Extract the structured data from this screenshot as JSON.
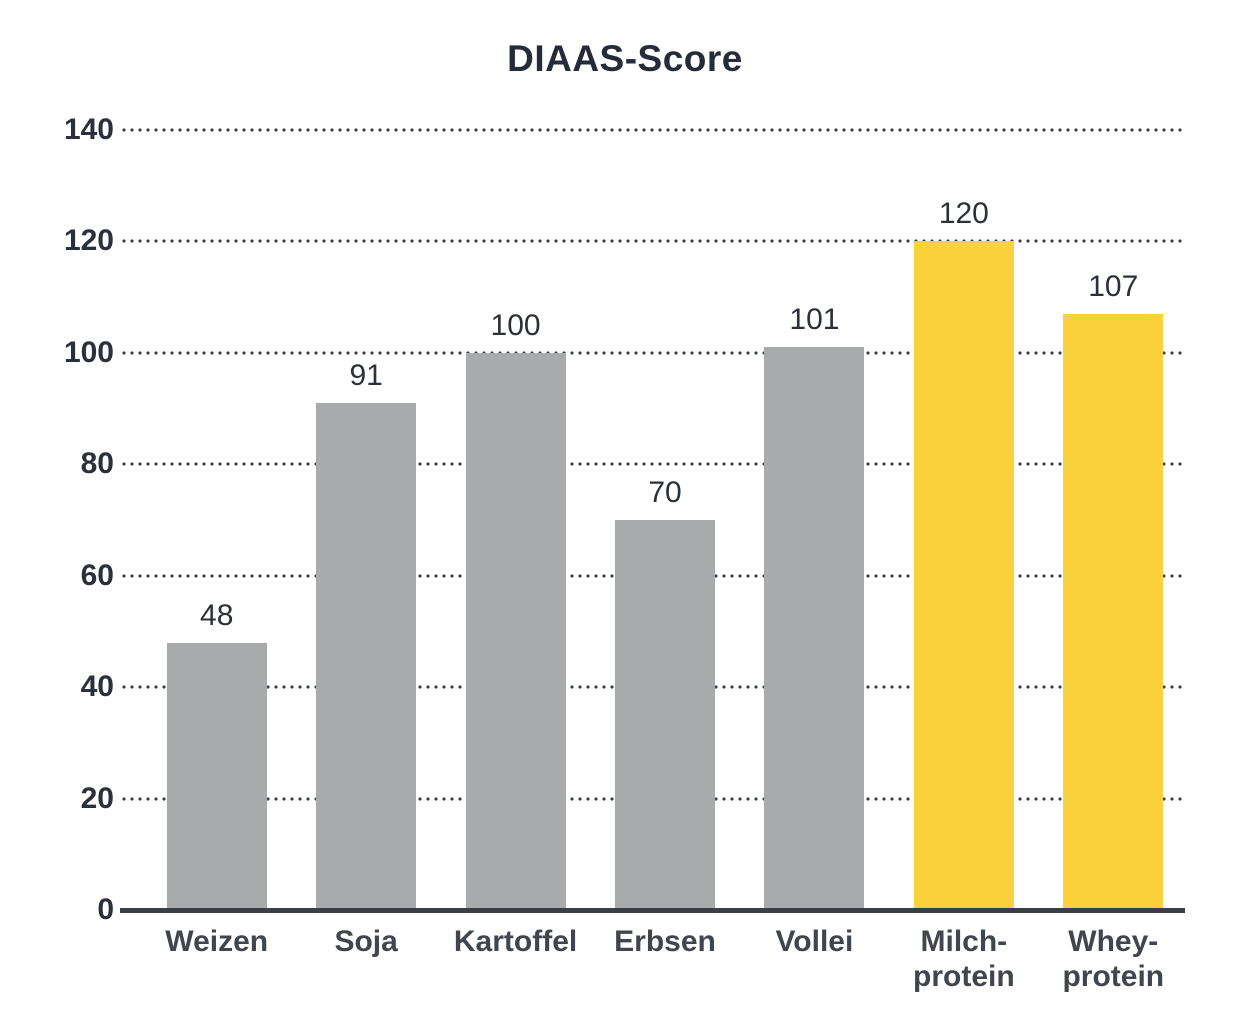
{
  "chart_data": {
    "type": "bar",
    "title": "DIAAS-Score",
    "categories": [
      "Weizen",
      "Soja",
      "Kartoffel",
      "Erbsen",
      "Vollei",
      "Milch-\nprotein",
      "Whey-\nprotein"
    ],
    "values": [
      48,
      91,
      100,
      70,
      101,
      120,
      107
    ],
    "bar_color_keys": [
      "gray",
      "gray",
      "gray",
      "gray",
      "gray",
      "yellow",
      "yellow"
    ],
    "colors": {
      "gray": "#A9AAAC",
      "yellow": "#FBD13C",
      "title_text": "#252B38",
      "tick_text": "#2A303C",
      "value_text": "#2B3039",
      "category_text": "#41454D",
      "grid_dots": "#3A3F47",
      "axis_line": "#3A3E45",
      "background": "#FFFFFF"
    },
    "xlabel": "",
    "ylabel": "",
    "ylim": [
      0,
      140
    ],
    "yticks": [
      0,
      20,
      40,
      60,
      80,
      100,
      120,
      140
    ],
    "grid": "horizontal dotted lines at each y tick except 0",
    "legend_position": "none"
  }
}
